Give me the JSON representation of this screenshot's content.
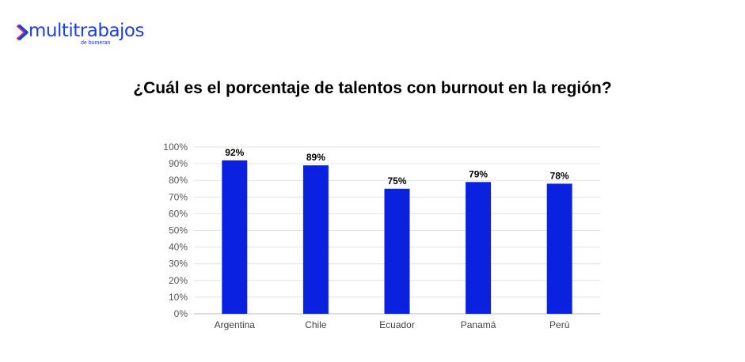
{
  "logo": {
    "name": "multitrabajos",
    "sub": "de bumeran"
  },
  "chart_data": {
    "type": "bar",
    "title": "¿Cuál es el porcentaje de talentos con burnout en la región?",
    "categories": [
      "Argentina",
      "Chile",
      "Ecuador",
      "Panamá",
      "Perú"
    ],
    "values": [
      92,
      89,
      75,
      79,
      78
    ],
    "data_labels": [
      "92%",
      "89%",
      "75%",
      "79%",
      "78%"
    ],
    "yticks": [
      "0%",
      "10%",
      "20%",
      "30%",
      "40%",
      "50%",
      "60%",
      "70%",
      "80%",
      "90%",
      "100%"
    ],
    "ylim": [
      0,
      100
    ],
    "xlabel": "",
    "ylabel": "",
    "grid": true,
    "bar_color": "#0a22e0"
  }
}
